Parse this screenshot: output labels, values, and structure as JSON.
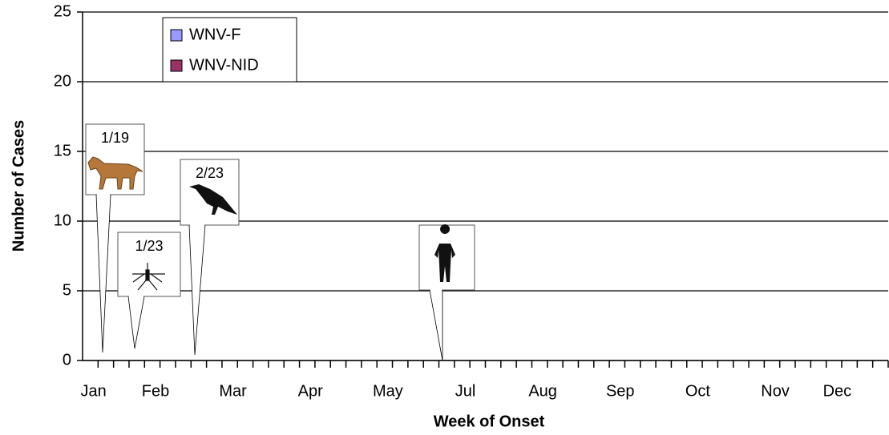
{
  "chart_data": {
    "type": "bar",
    "stacked": true,
    "xlabel": "Week of Onset",
    "ylabel": "Number of Cases",
    "categories": [
      "Jan",
      null,
      null,
      null,
      "Feb",
      null,
      null,
      null,
      null,
      "Mar",
      null,
      null,
      null,
      null,
      "Apr",
      null,
      null,
      null,
      null,
      "May",
      null,
      null,
      null,
      null,
      "Jul",
      null,
      null,
      null,
      null,
      "Aug",
      null,
      null,
      null,
      null,
      "Sep",
      null,
      null,
      null,
      null,
      "Oct",
      null,
      null,
      null,
      null,
      "Nov",
      null,
      null,
      null,
      "Dec",
      null,
      null,
      null
    ],
    "series": [
      {
        "name": "WNV-F",
        "color": "#9999ff",
        "values": [
          0,
          0,
          0,
          0,
          0,
          0,
          0,
          0,
          0,
          0,
          0,
          0,
          0,
          0,
          0,
          0,
          0,
          0,
          0,
          0,
          0,
          0,
          0,
          0,
          0,
          0,
          0,
          0,
          0,
          0,
          0,
          0,
          0,
          0,
          0,
          0,
          0,
          0,
          0,
          0,
          0,
          0,
          0,
          0,
          0,
          0,
          0,
          0,
          0,
          0,
          0,
          0
        ]
      },
      {
        "name": "WNV-NID",
        "color": "#993366",
        "values": [
          0,
          0,
          0,
          0,
          0,
          0,
          0,
          0,
          0,
          0,
          0,
          0,
          0,
          0,
          0,
          0,
          0,
          0,
          0,
          0,
          0,
          0,
          0,
          0,
          0,
          0,
          0,
          0,
          0,
          0,
          0,
          0,
          0,
          0,
          0,
          0,
          0,
          0,
          0,
          0,
          0,
          0,
          0,
          0,
          0,
          0,
          0,
          0,
          0,
          0,
          0,
          0
        ]
      }
    ],
    "ylim": [
      0,
      25
    ],
    "yticks": [
      0,
      5,
      10,
      15,
      20,
      25
    ],
    "grid": true,
    "annotations": [
      "1/19",
      "1/23",
      "2/23"
    ]
  }
}
